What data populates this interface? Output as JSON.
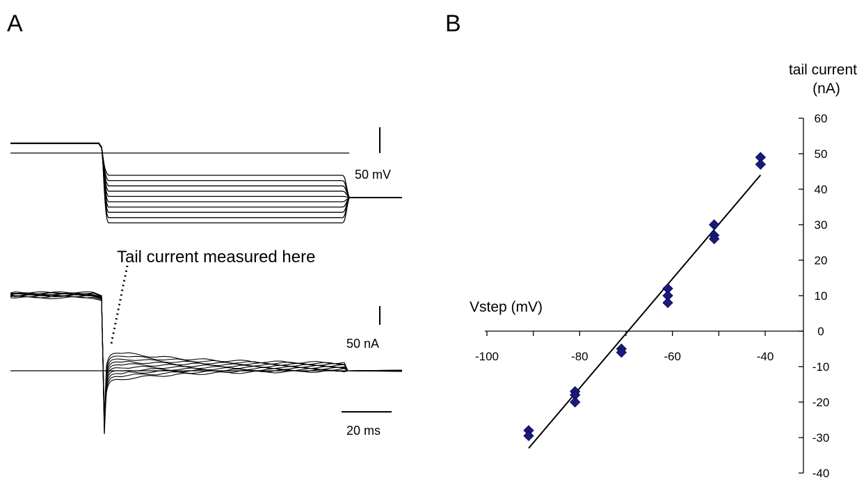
{
  "panels": {
    "a": {
      "label": "A"
    },
    "b": {
      "label": "B"
    }
  },
  "chart_data": [
    {
      "type": "line",
      "panel": "A",
      "title": "",
      "annotation": "Tail current measured here",
      "scale_bars": {
        "voltage": "50 mV",
        "current": "50 nA",
        "time": "20 ms"
      },
      "voltage_traces": {
        "holding_level": "top",
        "step_count": 10,
        "return_level": "common"
      },
      "current_traces": {
        "count": 10,
        "baseline": "zero"
      }
    },
    {
      "type": "scatter",
      "panel": "B",
      "title": "",
      "xlabel": "Vstep (mV)",
      "ylabel": [
        "tail current",
        "(nA)"
      ],
      "xlim": [
        -100,
        -40
      ],
      "ylim": [
        -40,
        60
      ],
      "x_ticks": [
        -100,
        -80,
        -60,
        -40
      ],
      "y_ticks": [
        60,
        50,
        40,
        30,
        20,
        10,
        0,
        -10,
        -20,
        -30,
        -40
      ],
      "marker": "diamond",
      "marker_color": "#1a1a7e",
      "grid": false,
      "series": [
        {
          "points": [
            {
              "x": -91,
              "y": -28
            },
            {
              "x": -91,
              "y": -29.5
            },
            {
              "x": -81,
              "y": -17
            },
            {
              "x": -81,
              "y": -18
            },
            {
              "x": -81,
              "y": -20
            },
            {
              "x": -71,
              "y": -5
            },
            {
              "x": -71,
              "y": -6
            },
            {
              "x": -61,
              "y": 12
            },
            {
              "x": -61,
              "y": 10
            },
            {
              "x": -61,
              "y": 8
            },
            {
              "x": -51,
              "y": 30
            },
            {
              "x": -51,
              "y": 27
            },
            {
              "x": -51,
              "y": 26
            },
            {
              "x": -41,
              "y": 49
            },
            {
              "x": -41,
              "y": 47
            }
          ]
        }
      ],
      "fit_line": {
        "x": [
          -91,
          -41
        ],
        "y": [
          -33,
          44
        ]
      }
    }
  ]
}
